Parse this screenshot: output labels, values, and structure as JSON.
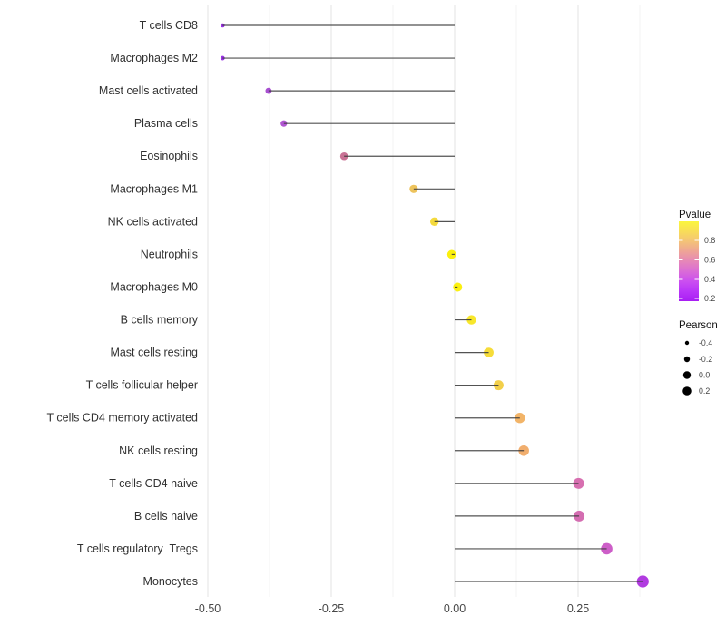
{
  "chart_data": {
    "type": "scatter",
    "variant": "horizontal-lollipop",
    "title": "",
    "xlabel": "",
    "ylabel": "",
    "xlim": [
      -0.5125,
      0.4225
    ],
    "x_major_ticks": [
      -0.5,
      -0.25,
      0.0,
      0.25
    ],
    "x_tick_labels": [
      "-0.50",
      "-0.25",
      "0.00",
      "0.25"
    ],
    "x_minor_ticks": [
      -0.375,
      -0.125,
      0.125,
      0.375
    ],
    "grid": "vertical-gridlines-only",
    "legend_position": "right",
    "points": [
      {
        "label": "T cells CD8",
        "pearson": -0.47,
        "pvalue_est": 0.15,
        "color": "#9b32e6",
        "radius_px": 2.3
      },
      {
        "label": "Macrophages M2",
        "pearson": -0.47,
        "pvalue_est": 0.15,
        "color": "#9b32e6",
        "radius_px": 2.4
      },
      {
        "label": "Mast cells activated",
        "pearson": -0.377,
        "pvalue_est": 0.2,
        "color": "#a74fd0",
        "radius_px": 3.4
      },
      {
        "label": "Plasma cells",
        "pearson": -0.346,
        "pvalue_est": 0.25,
        "color": "#b156d2",
        "radius_px": 3.6
      },
      {
        "label": "Eosinophils",
        "pearson": -0.224,
        "pvalue_est": 0.5,
        "color": "#c97295",
        "radius_px": 4.3
      },
      {
        "label": "Macrophages M1",
        "pearson": -0.083,
        "pvalue_est": 0.8,
        "color": "#edc35c",
        "radius_px": 4.6
      },
      {
        "label": "NK cells activated",
        "pearson": -0.041,
        "pvalue_est": 0.85,
        "color": "#f4da3d",
        "radius_px": 4.7
      },
      {
        "label": "Neutrophils",
        "pearson": -0.006,
        "pvalue_est": 0.95,
        "color": "#fbf00d",
        "radius_px": 4.9
      },
      {
        "label": "Macrophages M0",
        "pearson": 0.006,
        "pvalue_est": 0.95,
        "color": "#fbf010",
        "radius_px": 5.0
      },
      {
        "label": "B cells memory",
        "pearson": 0.034,
        "pvalue_est": 0.9,
        "color": "#f8e72b",
        "radius_px": 5.2
      },
      {
        "label": "Mast cells resting",
        "pearson": 0.069,
        "pvalue_est": 0.85,
        "color": "#f6dc39",
        "radius_px": 5.4
      },
      {
        "label": "T cells follicular helper",
        "pearson": 0.089,
        "pvalue_est": 0.8,
        "color": "#f2cf4a",
        "radius_px": 5.5
      },
      {
        "label": "T cells CD4 memory activated",
        "pearson": 0.132,
        "pvalue_est": 0.7,
        "color": "#f2b468",
        "radius_px": 5.7
      },
      {
        "label": "NK cells resting",
        "pearson": 0.14,
        "pvalue_est": 0.7,
        "color": "#f1ae6e",
        "radius_px": 5.8
      },
      {
        "label": "T cells CD4 naive",
        "pearson": 0.251,
        "pvalue_est": 0.4,
        "color": "#d76fb0",
        "radius_px": 6.0
      },
      {
        "label": "B cells naive",
        "pearson": 0.252,
        "pvalue_est": 0.4,
        "color": "#d46db1",
        "radius_px": 6.0
      },
      {
        "label": "T cells regulatory  Tregs",
        "pearson": 0.308,
        "pvalue_est": 0.3,
        "color": "#cd5ec8",
        "radius_px": 6.3
      },
      {
        "label": "Monocytes",
        "pearson": 0.381,
        "pvalue_est": 0.2,
        "color": "#b13be0",
        "radius_px": 6.6
      }
    ],
    "legend": {
      "pvalue": {
        "title": "Pvalue",
        "tick_labels": [
          "0.8",
          "0.6",
          "0.4",
          "0.2"
        ],
        "gradient_top_to_bottom": [
          "#fbf63e",
          "#f8dd58",
          "#f4c377",
          "#eea496",
          "#e687b8",
          "#da6cd6",
          "#cb4ff0",
          "#b935f8",
          "#a81ef3"
        ]
      },
      "pearson": {
        "title": "Pearson",
        "items": [
          {
            "label": "-0.4",
            "radius_px": 2.2
          },
          {
            "label": "-0.2",
            "radius_px": 3.2
          },
          {
            "label": "0.0",
            "radius_px": 4.2
          },
          {
            "label": "0.2",
            "radius_px": 4.8
          }
        ]
      }
    },
    "colors": {
      "stem": "#3a3a3a",
      "grid_major": "#e3e3e3",
      "grid_minor": "#f0f0f0",
      "axis_text": "#474747",
      "category_text": "#303030",
      "legend_dot": "#000000",
      "background": "#ffffff"
    }
  }
}
